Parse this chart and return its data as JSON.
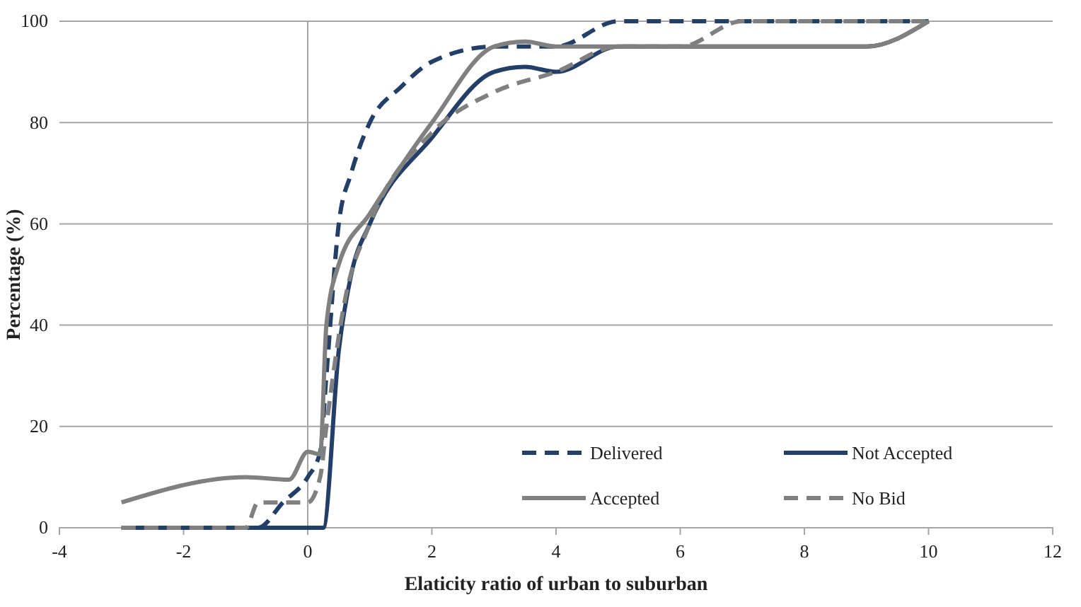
{
  "chart_data": {
    "type": "line",
    "xlabel": "Elaticity ratio of urban to suburban",
    "ylabel": "Percentage (%)",
    "xlim": [
      -4,
      12
    ],
    "xticks": [
      -4,
      -2,
      0,
      2,
      4,
      6,
      8,
      10,
      12
    ],
    "ylim": [
      0,
      100
    ],
    "yticks": [
      0,
      20,
      40,
      60,
      80,
      100
    ],
    "grid": "y",
    "legend": "bottom right",
    "marker": "none",
    "ref_lines": [
      {
        "axis": "x",
        "value": 0,
        "color": "#a6a6a6"
      }
    ],
    "series": [
      {
        "name": "Delivered",
        "color": "#243f67",
        "line_style": "dashed",
        "x": [
          -3,
          -0.8,
          -0.4,
          0,
          0.2,
          0.3,
          0.5,
          0.7,
          1,
          1.5,
          2,
          3,
          4,
          5,
          10
        ],
        "values": [
          0,
          0,
          5,
          10,
          15,
          30,
          60,
          70,
          80,
          87,
          92,
          95,
          95,
          100,
          100
        ]
      },
      {
        "name": "Not Accepted",
        "color": "#243f67",
        "line_style": "solid",
        "x": [
          -3,
          0.25,
          0.5,
          0.7,
          1,
          2,
          3,
          3.5,
          4,
          5,
          6,
          8,
          9,
          10
        ],
        "values": [
          0,
          0,
          35,
          50,
          60,
          77,
          90,
          91,
          90,
          95,
          95,
          95,
          95,
          100
        ]
      },
      {
        "name": "Accepted",
        "color": "#808080",
        "line_style": "solid",
        "x": [
          -3,
          -1,
          -0.3,
          0,
          0.2,
          0.3,
          0.5,
          1,
          2,
          3,
          3.5,
          4,
          5,
          6,
          8,
          9,
          10
        ],
        "values": [
          5,
          10,
          9.5,
          15,
          14.5,
          40,
          52,
          62,
          80,
          95,
          96,
          95,
          95,
          95,
          95,
          95,
          100
        ]
      },
      {
        "name": "No Bid",
        "color": "#808080",
        "line_style": "dashed",
        "x": [
          -3,
          -1,
          -0.8,
          0,
          0.2,
          0.3,
          0.6,
          1,
          2,
          3,
          4,
          5,
          6,
          7,
          10
        ],
        "values": [
          0,
          0,
          5,
          5,
          10,
          20,
          45,
          60,
          78,
          86,
          90,
          95,
          95,
          100,
          100
        ]
      }
    ]
  }
}
